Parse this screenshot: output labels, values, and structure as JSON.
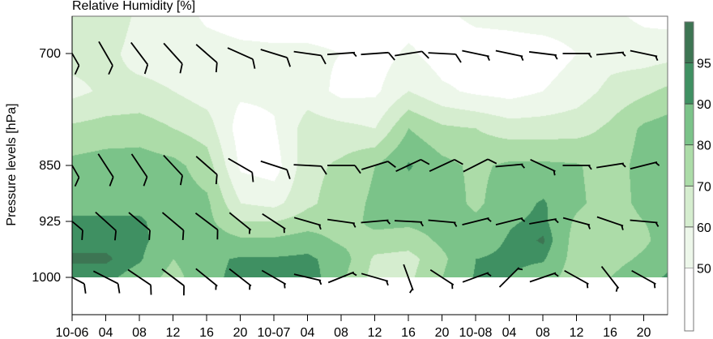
{
  "chart_data": {
    "type": "heatmap",
    "title": "Relative Humidity [%]",
    "xlabel": "",
    "ylabel": "Pressure levels [hPa]",
    "x_tick_labels": [
      "10-06",
      "04",
      "08",
      "12",
      "16",
      "20",
      "10-07",
      "04",
      "08",
      "12",
      "16",
      "20",
      "10-08",
      "04",
      "08",
      "12",
      "16",
      "20"
    ],
    "y_tick_labels": [
      "700",
      "850",
      "925",
      "1000"
    ],
    "y_ticks": [
      700,
      850,
      925,
      1000
    ],
    "ylim": [
      1050,
      650
    ],
    "y_reversed": true,
    "colorbar": {
      "levels": [
        50,
        60,
        70,
        80,
        90,
        95
      ],
      "labels": [
        "50",
        "60",
        "70",
        "80",
        "90",
        "95"
      ],
      "colors": [
        "#ffffff",
        "#edf7ea",
        "#d5edcf",
        "#acdca8",
        "#7bc389",
        "#3f9062",
        "#3d7553"
      ]
    },
    "rh": {
      "times": [
        "10-06 00",
        "10-06 04",
        "10-06 08",
        "10-06 12",
        "10-06 16",
        "10-06 20",
        "10-07 00",
        "10-07 04",
        "10-07 08",
        "10-07 12",
        "10-07 16",
        "10-07 20",
        "10-08 00",
        "10-08 04",
        "10-08 08",
        "10-08 12",
        "10-08 16",
        "10-08 20",
        "10-09 00"
      ],
      "levels": [
        650,
        700,
        750,
        800,
        850,
        900,
        925,
        950,
        975,
        1000
      ],
      "values": [
        [
          66,
          64,
          57,
          72,
          83,
          88,
          91,
          93,
          96,
          92
        ],
        [
          66,
          63,
          62,
          74,
          85,
          88,
          91,
          93,
          96,
          92
        ],
        [
          58,
          56,
          63,
          75,
          85,
          88,
          91,
          92,
          91,
          86
        ],
        [
          56,
          55,
          60,
          70,
          83,
          85,
          86,
          85,
          80,
          76
        ],
        [
          48,
          55,
          55,
          65,
          75,
          82,
          83,
          86,
          88,
          88
        ],
        [
          45,
          53,
          52,
          45,
          48,
          60,
          70,
          82,
          91,
          92
        ],
        [
          45,
          52,
          52,
          49,
          45,
          57,
          70,
          82,
          91,
          92
        ],
        [
          45,
          52,
          55,
          65,
          67,
          68,
          75,
          85,
          92,
          95
        ],
        [
          45,
          50,
          47,
          63,
          72,
          75,
          75,
          78,
          85,
          82
        ],
        [
          45,
          45,
          48,
          60,
          80,
          82,
          83,
          76,
          68,
          66
        ],
        [
          45,
          52,
          60,
          80,
          91,
          84,
          82,
          75,
          66,
          68
        ],
        [
          48,
          45,
          52,
          72,
          83,
          85,
          84,
          82,
          78,
          80
        ],
        [
          52,
          45,
          48,
          70,
          78,
          78,
          82,
          85,
          90,
          91
        ],
        [
          53,
          45,
          46,
          65,
          82,
          86,
          89,
          91,
          92,
          90
        ],
        [
          55,
          45,
          50,
          65,
          82,
          91,
          92,
          96,
          91,
          85
        ],
        [
          55,
          50,
          55,
          66,
          81,
          82,
          78,
          75,
          75,
          74
        ],
        [
          52,
          56,
          63,
          72,
          75,
          75,
          74,
          73,
          76,
          80
        ],
        [
          48,
          55,
          68,
          82,
          84,
          83,
          80,
          78,
          82,
          88
        ],
        [
          46,
          57,
          74,
          86,
          91,
          85,
          84,
          88,
          91,
          92
        ]
      ]
    },
    "wind": {
      "levels": [
        700,
        850,
        925,
        1000
      ],
      "times": [
        "10-06 00",
        "10-06 04",
        "10-06 08",
        "10-06 12",
        "10-06 16",
        "10-06 20",
        "10-07 00",
        "10-07 04",
        "10-07 08",
        "10-07 12",
        "10-07 16",
        "10-07 20",
        "10-08 00",
        "10-08 04",
        "10-08 08",
        "10-08 12",
        "10-08 16",
        "10-08 20"
      ],
      "direction_deg": [
        [
          150,
          150,
          143,
          138,
          131,
          114,
          107,
          98,
          86,
          86,
          81,
          93,
          102,
          102,
          97,
          90,
          85,
          102
        ],
        [
          150,
          147,
          146,
          137,
          131,
          120,
          108,
          93,
          90,
          73,
          65,
          65,
          63,
          85,
          115,
          90,
          81,
          76
        ],
        [
          130,
          132,
          130,
          130,
          127,
          129,
          123,
          106,
          98,
          85,
          93,
          95,
          76,
          76,
          80,
          105,
          109,
          95
        ],
        [
          118,
          117,
          124,
          127,
          129,
          128,
          120,
          103,
          68,
          106,
          160,
          123,
          70,
          45,
          71,
          119,
          142,
          119
        ]
      ],
      "speed_kt": [
        [
          10,
          10,
          10,
          10,
          10,
          10,
          10,
          10,
          5,
          10,
          10,
          10,
          5,
          5,
          5,
          5,
          5,
          5
        ],
        [
          10,
          10,
          10,
          10,
          10,
          10,
          10,
          10,
          10,
          10,
          10,
          10,
          10,
          5,
          5,
          5,
          5,
          5
        ],
        [
          10,
          10,
          10,
          10,
          10,
          5,
          5,
          5,
          5,
          5,
          5,
          5,
          5,
          5,
          5,
          5,
          5,
          5
        ],
        [
          10,
          10,
          10,
          10,
          5,
          5,
          5,
          5,
          5,
          5,
          5,
          5,
          5,
          5,
          5,
          5,
          5,
          5
        ]
      ]
    }
  }
}
